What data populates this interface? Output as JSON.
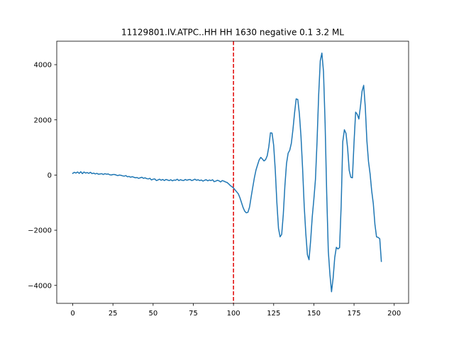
{
  "chart_data": {
    "type": "line",
    "title": "11129801.IV.ATPC..HH HH 1630 negative 0.1 3.2 ML",
    "xlabel": "",
    "ylabel": "",
    "xlim": [
      -9.95,
      208.95
    ],
    "ylim": [
      -4650,
      4850
    ],
    "xticks": [
      0,
      25,
      50,
      75,
      100,
      125,
      150,
      175,
      200
    ],
    "xtick_labels": [
      "0",
      "25",
      "50",
      "75",
      "100",
      "125",
      "150",
      "175",
      "200"
    ],
    "yticks": [
      -4000,
      -2000,
      0,
      2000,
      4000
    ],
    "ytick_labels": [
      "−4000",
      "−2000",
      "0",
      "2000",
      "4000"
    ],
    "grid": false,
    "legend": "none",
    "series_color": "#1f77b4",
    "marker_color": "#e00000",
    "vline_x": 100,
    "series": [
      {
        "values": [
          60,
          100,
          70,
          110,
          60,
          120,
          50,
          110,
          70,
          90,
          60,
          100,
          50,
          70,
          40,
          60,
          30,
          40,
          50,
          20,
          50,
          30,
          40,
          10,
          0,
          20,
          20,
          0,
          -20,
          0,
          -10,
          -30,
          -40,
          -20,
          -60,
          -50,
          -80,
          -60,
          -80,
          -100,
          -90,
          -120,
          -100,
          -80,
          -120,
          -100,
          -130,
          -140,
          -120,
          -180,
          -150,
          -140,
          -200,
          -180,
          -150,
          -190,
          -160,
          -200,
          -160,
          -180,
          -200,
          -170,
          -210,
          -180,
          -190,
          -150,
          -200,
          -170,
          -190,
          -200,
          -160,
          -190,
          -170,
          -160,
          -200,
          -180,
          -150,
          -190,
          -170,
          -200,
          -180,
          -220,
          -190,
          -170,
          -210,
          -180,
          -200,
          -170,
          -240,
          -220,
          -190,
          -210,
          -250,
          -200,
          -220,
          -250,
          -270,
          -320,
          -380,
          -420,
          -470,
          -540,
          -610,
          -680,
          -820,
          -1000,
          -1180,
          -1310,
          -1370,
          -1350,
          -1160,
          -790,
          -440,
          -100,
          180,
          370,
          550,
          640,
          580,
          510,
          560,
          700,
          1030,
          1530,
          1520,
          1080,
          180,
          -1000,
          -1930,
          -2240,
          -2150,
          -1420,
          -380,
          420,
          790,
          900,
          1150,
          1650,
          2250,
          2760,
          2740,
          2220,
          1400,
          240,
          -1120,
          -2120,
          -2890,
          -3070,
          -2380,
          -1520,
          -880,
          -160,
          1230,
          2900,
          4140,
          4420,
          3750,
          1880,
          -670,
          -2760,
          -3600,
          -4230,
          -3730,
          -2990,
          -2620,
          -2680,
          -2630,
          -1100,
          1210,
          1640,
          1510,
          980,
          170,
          -80,
          -100,
          1180,
          2280,
          2200,
          2030,
          2490,
          3040,
          3250,
          2470,
          1240,
          490,
          40,
          -580,
          -1040,
          -1790,
          -2240,
          -2260,
          -2310,
          -3130
        ]
      }
    ]
  }
}
